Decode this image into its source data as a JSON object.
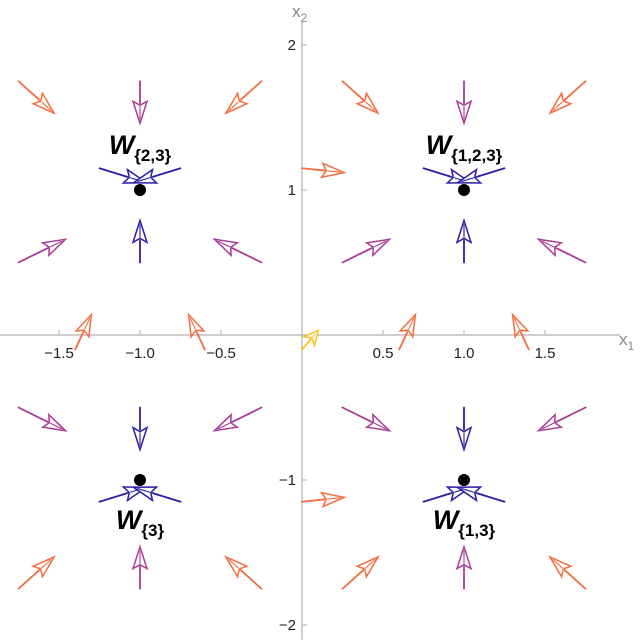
{
  "chart_data": {
    "type": "vector-field",
    "xlim": [
      -1.85,
      1.85
    ],
    "ylim": [
      -2.1,
      2.1
    ],
    "x_ticks": [
      {
        "value": -1.5,
        "label": "−1.5"
      },
      {
        "value": -1.0,
        "label": "−1.0"
      },
      {
        "value": -0.5,
        "label": "−0.5"
      },
      {
        "value": 0.5,
        "label": "0.5"
      },
      {
        "value": 1.0,
        "label": "1.0"
      },
      {
        "value": 1.5,
        "label": "1.5"
      }
    ],
    "y_ticks": [
      {
        "value": -2,
        "label": "−2"
      },
      {
        "value": -1,
        "label": "−1"
      },
      {
        "value": 1,
        "label": "1"
      },
      {
        "value": 2,
        "label": "2"
      }
    ],
    "x_axis": {
      "base": "x",
      "sub": "1"
    },
    "y_axis": {
      "base": "x",
      "sub": "2"
    },
    "fixed_points": [
      {
        "x": -1,
        "y": 1,
        "label": "W",
        "sub": "{2,3}",
        "label_pos": "above"
      },
      {
        "x": 1,
        "y": 1,
        "label": "W",
        "sub": "{1,2,3}",
        "label_pos": "above"
      },
      {
        "x": -1,
        "y": -1,
        "label": "W",
        "sub": "{3}",
        "label_pos": "below"
      },
      {
        "x": 1,
        "y": -1,
        "label": "W",
        "sub": "{1,3}",
        "label_pos": "below"
      }
    ],
    "arrows": [
      {
        "x": -1.75,
        "y": 1.75,
        "dx": 0.22,
        "dy": -0.22,
        "color": "#f26c3c"
      },
      {
        "x": -1.0,
        "y": 1.75,
        "dx": 0.0,
        "dy": -0.29,
        "color": "#a93a96"
      },
      {
        "x": -0.25,
        "y": 1.75,
        "dx": -0.22,
        "dy": -0.22,
        "color": "#f26c3c"
      },
      {
        "x": 0.25,
        "y": 1.75,
        "dx": 0.22,
        "dy": -0.22,
        "color": "#f26c3c"
      },
      {
        "x": 1.0,
        "y": 1.75,
        "dx": 0.0,
        "dy": -0.29,
        "color": "#a93a96"
      },
      {
        "x": 1.75,
        "y": 1.75,
        "dx": -0.22,
        "dy": -0.22,
        "color": "#f26c3c"
      },
      {
        "x": -1.25,
        "y": 1.15,
        "dx": 0.29,
        "dy": -0.1,
        "color": "#2a1ea8"
      },
      {
        "x": -0.75,
        "y": 1.15,
        "dx": -0.29,
        "dy": -0.1,
        "color": "#2a1ea8"
      },
      {
        "x": 0.0,
        "y": 1.15,
        "dx": 0.26,
        "dy": -0.03,
        "color": "#f26c3c"
      },
      {
        "x": 0.75,
        "y": 1.15,
        "dx": 0.29,
        "dy": -0.1,
        "color": "#2a1ea8"
      },
      {
        "x": 1.25,
        "y": 1.15,
        "dx": -0.29,
        "dy": -0.1,
        "color": "#2a1ea8"
      },
      {
        "x": -1.75,
        "y": 0.5,
        "dx": 0.29,
        "dy": 0.16,
        "color": "#a93a96"
      },
      {
        "x": -1.0,
        "y": 0.5,
        "dx": 0.0,
        "dy": 0.29,
        "color": "#2a1ea8"
      },
      {
        "x": -0.25,
        "y": 0.5,
        "dx": -0.29,
        "dy": 0.16,
        "color": "#a93a96"
      },
      {
        "x": 0.25,
        "y": 0.5,
        "dx": 0.29,
        "dy": 0.16,
        "color": "#a93a96"
      },
      {
        "x": 1.0,
        "y": 0.5,
        "dx": 0.0,
        "dy": 0.29,
        "color": "#2a1ea8"
      },
      {
        "x": 1.75,
        "y": 0.5,
        "dx": -0.29,
        "dy": 0.16,
        "color": "#a93a96"
      },
      {
        "x": -1.4,
        "y": -0.1,
        "dx": 0.1,
        "dy": 0.24,
        "color": "#f26c3c"
      },
      {
        "x": -0.6,
        "y": -0.1,
        "dx": -0.1,
        "dy": 0.24,
        "color": "#f26c3c"
      },
      {
        "x": 0.0,
        "y": -0.1,
        "dx": 0.1,
        "dy": 0.13,
        "color": "#f5c21b"
      },
      {
        "x": 0.6,
        "y": -0.1,
        "dx": 0.1,
        "dy": 0.24,
        "color": "#f26c3c"
      },
      {
        "x": 1.4,
        "y": -0.1,
        "dx": -0.1,
        "dy": 0.24,
        "color": "#f26c3c"
      },
      {
        "x": -1.75,
        "y": -0.5,
        "dx": 0.29,
        "dy": -0.16,
        "color": "#a93a96"
      },
      {
        "x": -1.0,
        "y": -0.5,
        "dx": 0.0,
        "dy": -0.29,
        "color": "#2a1ea8"
      },
      {
        "x": -0.25,
        "y": -0.5,
        "dx": -0.29,
        "dy": -0.16,
        "color": "#a93a96"
      },
      {
        "x": 0.25,
        "y": -0.5,
        "dx": 0.29,
        "dy": -0.16,
        "color": "#a93a96"
      },
      {
        "x": 1.0,
        "y": -0.5,
        "dx": 0.0,
        "dy": -0.29,
        "color": "#2a1ea8"
      },
      {
        "x": 1.75,
        "y": -0.5,
        "dx": -0.29,
        "dy": -0.16,
        "color": "#a93a96"
      },
      {
        "x": -1.25,
        "y": -1.15,
        "dx": 0.29,
        "dy": 0.1,
        "color": "#2a1ea8"
      },
      {
        "x": -0.75,
        "y": -1.15,
        "dx": -0.29,
        "dy": 0.1,
        "color": "#2a1ea8"
      },
      {
        "x": 0.0,
        "y": -1.15,
        "dx": 0.26,
        "dy": 0.03,
        "color": "#f26c3c"
      },
      {
        "x": 0.75,
        "y": -1.15,
        "dx": 0.29,
        "dy": 0.1,
        "color": "#2a1ea8"
      },
      {
        "x": 1.25,
        "y": -1.15,
        "dx": -0.29,
        "dy": 0.1,
        "color": "#2a1ea8"
      },
      {
        "x": -1.75,
        "y": -1.75,
        "dx": 0.22,
        "dy": 0.22,
        "color": "#f26c3c"
      },
      {
        "x": -1.0,
        "y": -1.75,
        "dx": 0.0,
        "dy": 0.29,
        "color": "#a93a96"
      },
      {
        "x": -0.25,
        "y": -1.75,
        "dx": -0.22,
        "dy": 0.22,
        "color": "#f26c3c"
      },
      {
        "x": 0.25,
        "y": -1.75,
        "dx": 0.22,
        "dy": 0.22,
        "color": "#f26c3c"
      },
      {
        "x": 1.0,
        "y": -1.75,
        "dx": 0.0,
        "dy": 0.29,
        "color": "#a93a96"
      },
      {
        "x": 1.75,
        "y": -1.75,
        "dx": -0.22,
        "dy": 0.22,
        "color": "#f26c3c"
      }
    ],
    "colors": {
      "axis": "#b0b0b0",
      "point": "#000000"
    }
  }
}
